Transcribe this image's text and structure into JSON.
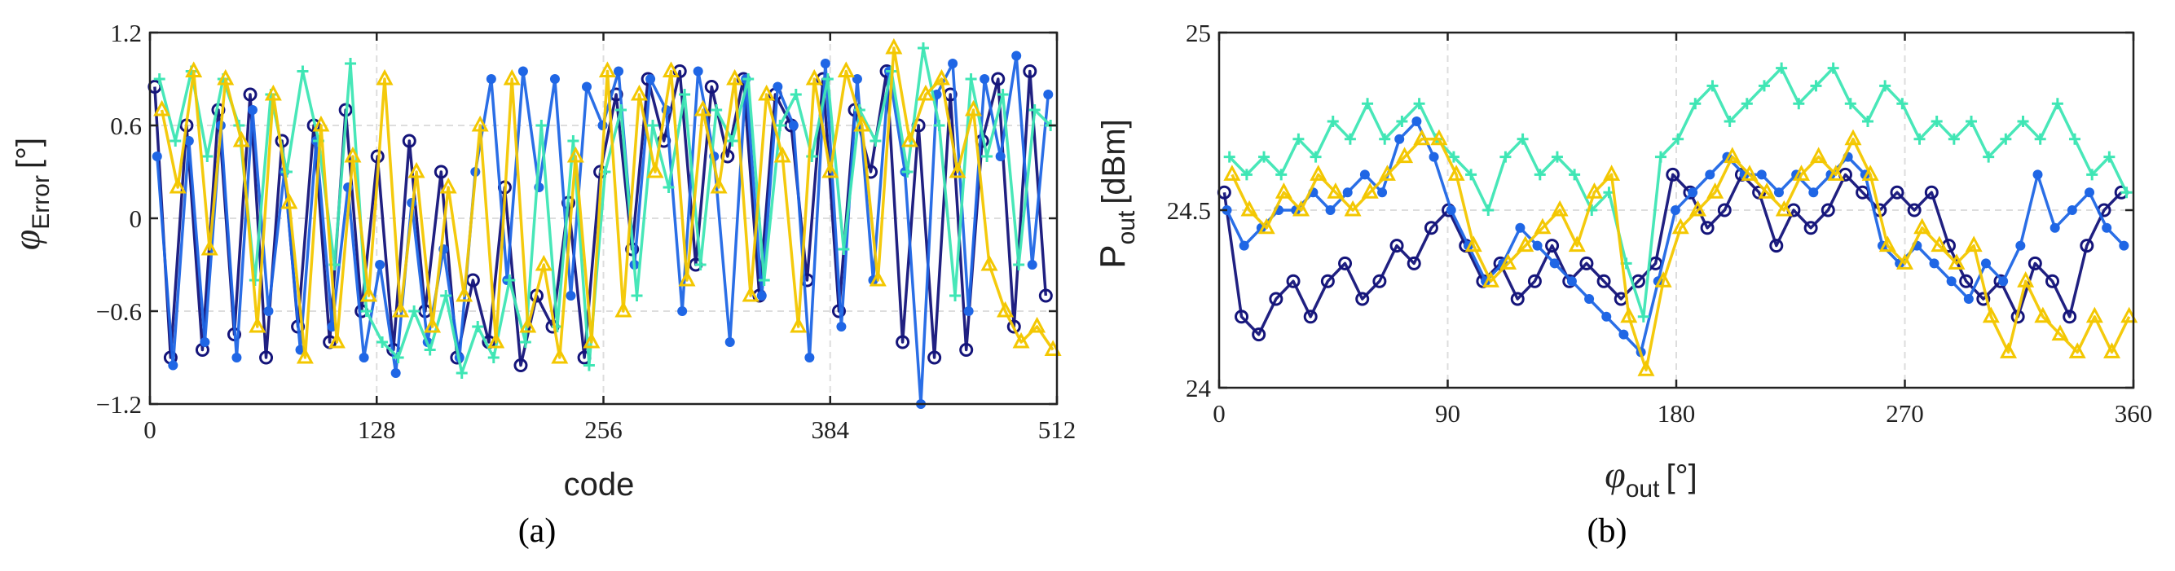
{
  "figure": {
    "caption_a": "(a)",
    "caption_b": "(b)"
  },
  "colors": {
    "navy": "#14147a",
    "blue": "#1f66e5",
    "teal": "#3ee6b4",
    "yellow": "#f3c700",
    "axis": "#222222"
  },
  "chart_data": [
    {
      "id": "a",
      "type": "line",
      "caption": "(a)",
      "xlabel": "code",
      "ylabel_base": "φ",
      "ylabel_sub": "Error",
      "ylabel_unit": "[°]",
      "xlim": [
        0,
        512
      ],
      "ylim": [
        -1.2,
        1.2
      ],
      "xticks": [
        0,
        128,
        256,
        384,
        512
      ],
      "yticks": [
        -1.2,
        -0.6,
        0,
        0.6,
        1.2
      ],
      "xtick_labels": [
        "0",
        "128",
        "256",
        "384",
        "512"
      ],
      "ytick_labels": [
        "−1.2",
        "−0.6",
        "0",
        "0.6",
        "1.2"
      ],
      "grid": true,
      "series": [
        {
          "color": "navy",
          "marker": "circle",
          "values": [
            0.85,
            -0.9,
            0.6,
            -0.85,
            0.7,
            -0.75,
            0.8,
            -0.9,
            0.5,
            -0.7,
            0.6,
            -0.8,
            0.7,
            -0.6,
            0.4,
            -0.85,
            0.5,
            -0.6,
            0.3,
            -0.9,
            -0.4,
            -0.8,
            0.2,
            -0.95,
            -0.5,
            -0.7,
            0.1,
            -0.9,
            0.3,
            0.8,
            -0.2,
            0.9,
            0.5,
            0.95,
            -0.3,
            0.85,
            0.4,
            0.9,
            -0.5,
            0.8,
            0.6,
            -0.4,
            0.9,
            -0.6,
            0.7,
            0.3,
            0.95,
            -0.8,
            0.6,
            -0.9,
            0.8,
            -0.85,
            0.5,
            0.9,
            -0.7,
            0.95,
            -0.5
          ]
        },
        {
          "color": "blue",
          "marker": "dot",
          "values": [
            0.4,
            -0.95,
            0.5,
            -0.8,
            0.6,
            -0.9,
            0.7,
            -0.6,
            0.3,
            -0.85,
            0.5,
            -0.7,
            0.2,
            -0.9,
            -0.3,
            -1.0,
            0.1,
            -0.8,
            -0.2,
            -0.9,
            0.3,
            0.9,
            -0.4,
            0.95,
            0.2,
            0.9,
            -0.5,
            0.85,
            0.6,
            0.95,
            -0.3,
            0.9,
            0.7,
            -0.6,
            0.95,
            0.4,
            -0.8,
            0.9,
            -0.5,
            0.85,
            0.6,
            -0.9,
            1.0,
            -0.7,
            0.9,
            -0.4,
            0.95,
            0.3,
            -1.2,
            0.8,
            1.0,
            -0.6,
            0.9,
            0.4,
            1.05,
            -0.3,
            0.8
          ]
        },
        {
          "color": "teal",
          "marker": "plus",
          "values": [
            0.9,
            0.5,
            0.95,
            0.4,
            0.9,
            0.6,
            -0.4,
            0.8,
            0.3,
            0.95,
            0.5,
            -0.3,
            1.0,
            -0.6,
            -0.8,
            -0.9,
            -0.6,
            -0.85,
            -0.5,
            -1.0,
            -0.7,
            -0.9,
            -0.4,
            -0.8,
            0.6,
            -0.7,
            0.5,
            -0.95,
            0.3,
            0.7,
            -0.5,
            0.6,
            0.2,
            0.8,
            -0.3,
            0.7,
            0.5,
            0.9,
            -0.4,
            0.6,
            0.8,
            0.4,
            0.9,
            -0.2,
            0.7,
            0.5,
            0.95,
            0.3,
            1.1,
            0.6,
            -0.5,
            0.9,
            0.4,
            0.8,
            -0.3,
            0.7,
            0.6
          ]
        },
        {
          "color": "yellow",
          "marker": "triangle",
          "values": [
            0.7,
            0.2,
            0.95,
            -0.2,
            0.9,
            0.5,
            -0.7,
            0.8,
            0.1,
            -0.9,
            0.6,
            -0.8,
            0.4,
            -0.5,
            0.9,
            -0.6,
            0.3,
            -0.7,
            0.2,
            -0.5,
            0.6,
            -0.8,
            0.9,
            -0.7,
            -0.3,
            -0.9,
            0.4,
            -0.8,
            0.95,
            -0.6,
            0.8,
            0.3,
            0.95,
            -0.4,
            0.7,
            0.2,
            0.9,
            -0.5,
            0.8,
            0.4,
            -0.7,
            0.9,
            0.3,
            0.95,
            0.6,
            -0.4,
            1.1,
            0.5,
            0.8,
            0.9,
            0.3,
            0.7,
            -0.3,
            -0.6,
            -0.8,
            -0.7,
            -0.85
          ]
        }
      ]
    },
    {
      "id": "b",
      "type": "line",
      "caption": "(b)",
      "xlabel_base": "φ",
      "xlabel_sub": "out",
      "xlabel_unit": "[°]",
      "ylabel_base": "P",
      "ylabel_sub": "out",
      "ylabel_unit": "[dBm]",
      "xlim": [
        0,
        360
      ],
      "ylim": [
        24,
        25
      ],
      "xticks": [
        0,
        90,
        180,
        270,
        360
      ],
      "yticks": [
        24,
        24.5,
        25
      ],
      "xtick_labels": [
        "0",
        "90",
        "180",
        "270",
        "360"
      ],
      "ytick_labels": [
        "24",
        "24.5",
        "25"
      ],
      "grid": true,
      "series": [
        {
          "color": "navy",
          "marker": "circle",
          "values": [
            24.55,
            24.2,
            24.15,
            24.25,
            24.3,
            24.2,
            24.3,
            24.35,
            24.25,
            24.3,
            24.4,
            24.35,
            24.45,
            24.5,
            24.4,
            24.3,
            24.35,
            24.25,
            24.3,
            24.4,
            24.3,
            24.35,
            24.3,
            24.25,
            24.3,
            24.35,
            24.6,
            24.55,
            24.45,
            24.5,
            24.6,
            24.55,
            24.4,
            24.5,
            24.45,
            24.5,
            24.6,
            24.55,
            24.5,
            24.55,
            24.5,
            24.55,
            24.4,
            24.3,
            24.25,
            24.3,
            24.2,
            24.35,
            24.3,
            24.2,
            24.4,
            24.5,
            24.55
          ]
        },
        {
          "color": "blue",
          "marker": "dot",
          "values": [
            24.5,
            24.4,
            24.45,
            24.5,
            24.5,
            24.55,
            24.5,
            24.55,
            24.6,
            24.55,
            24.7,
            24.75,
            24.65,
            24.5,
            24.4,
            24.3,
            24.35,
            24.45,
            24.4,
            24.35,
            24.3,
            24.25,
            24.2,
            24.15,
            24.1,
            24.3,
            24.5,
            24.55,
            24.6,
            24.65,
            24.6,
            24.6,
            24.55,
            24.6,
            24.55,
            24.6,
            24.65,
            24.6,
            24.4,
            24.35,
            24.4,
            24.35,
            24.3,
            24.25,
            24.35,
            24.3,
            24.4,
            24.6,
            24.45,
            24.5,
            24.55,
            24.45,
            24.4
          ]
        },
        {
          "color": "teal",
          "marker": "plus",
          "values": [
            24.65,
            24.6,
            24.65,
            24.6,
            24.7,
            24.65,
            24.75,
            24.7,
            24.8,
            24.7,
            24.75,
            24.8,
            24.7,
            24.65,
            24.6,
            24.5,
            24.65,
            24.7,
            24.6,
            24.65,
            24.6,
            24.5,
            24.55,
            24.35,
            24.2,
            24.65,
            24.7,
            24.8,
            24.85,
            24.75,
            24.8,
            24.85,
            24.9,
            24.8,
            24.85,
            24.9,
            24.8,
            24.75,
            24.85,
            24.8,
            24.7,
            24.75,
            24.7,
            24.75,
            24.65,
            24.7,
            24.75,
            24.7,
            24.8,
            24.7,
            24.6,
            24.65,
            24.55
          ]
        },
        {
          "color": "yellow",
          "marker": "triangle",
          "values": [
            24.6,
            24.5,
            24.45,
            24.55,
            24.5,
            24.6,
            24.55,
            24.5,
            24.55,
            24.6,
            24.65,
            24.7,
            24.7,
            24.6,
            24.4,
            24.3,
            24.35,
            24.4,
            24.45,
            24.5,
            24.4,
            24.55,
            24.6,
            24.2,
            24.05,
            24.3,
            24.45,
            24.5,
            24.55,
            24.65,
            24.6,
            24.55,
            24.5,
            24.6,
            24.65,
            24.6,
            24.7,
            24.6,
            24.4,
            24.35,
            24.45,
            24.4,
            24.35,
            24.4,
            24.2,
            24.1,
            24.3,
            24.2,
            24.15,
            24.1,
            24.2,
            24.1,
            24.2
          ]
        }
      ]
    }
  ]
}
